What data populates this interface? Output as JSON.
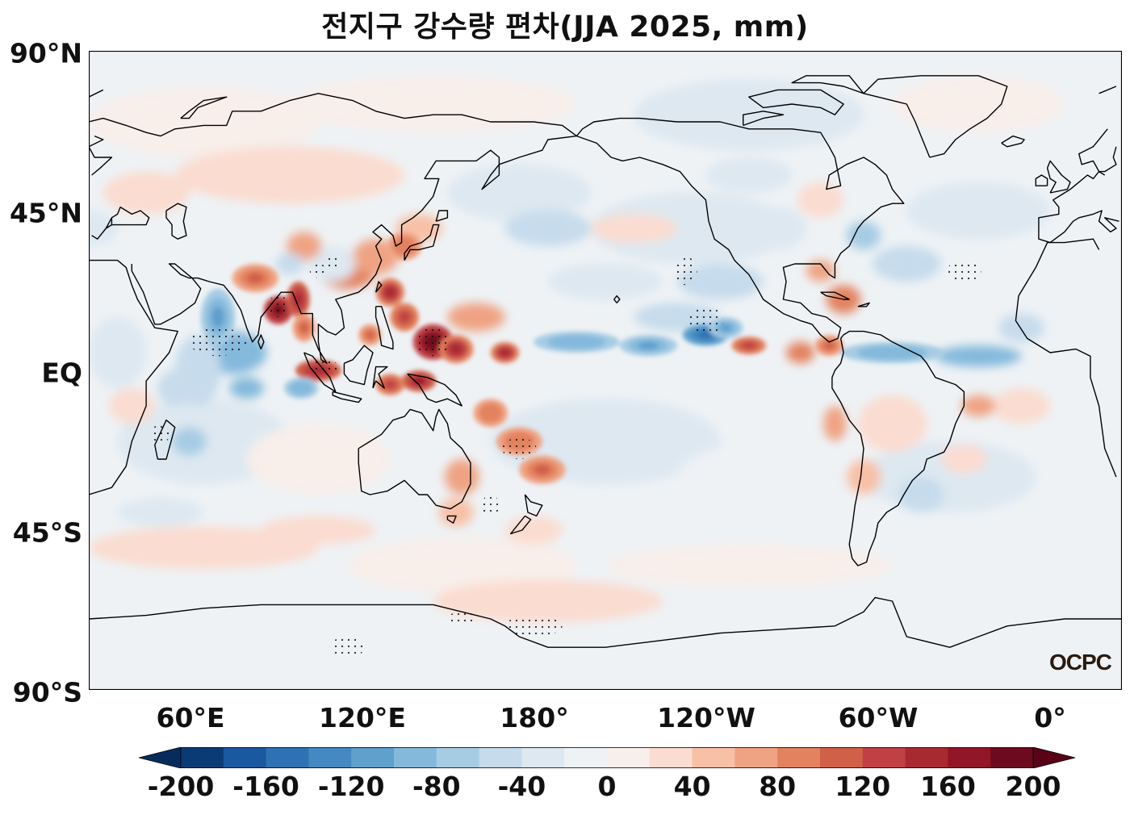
{
  "title": "전지구 강수량 편차(JJA 2025, mm)",
  "logo": "OCPC",
  "lat_labels": [
    "90°N",
    "45°N",
    "EQ",
    "45°S",
    "90°S"
  ],
  "lon_labels": [
    "60°E",
    "120°E",
    "180°",
    "120°W",
    "60°W",
    "0°"
  ],
  "colorbar": {
    "min": -200,
    "max": 200,
    "step": 20,
    "extend": "both",
    "tick_labels": [
      "-200",
      "-160",
      "-120",
      "-80",
      "-40",
      "0",
      "40",
      "80",
      "120",
      "160",
      "200"
    ],
    "colors": [
      "#0b3b75",
      "#1a58a0",
      "#2f72b3",
      "#4489c2",
      "#5fa0cd",
      "#84b9dc",
      "#a6cce4",
      "#c6dbec",
      "#dde8f1",
      "#eef2f5",
      "#f8eeea",
      "#fbdcd0",
      "#f8c0a6",
      "#efa383",
      "#e3825f",
      "#d06048",
      "#c04044",
      "#a82a30",
      "#921627",
      "#6d0a1f"
    ],
    "extend_min_color": "#062c5c",
    "extend_max_color": "#5a0216"
  },
  "map": {
    "projection": "PlateCarree",
    "central_longitude": 180,
    "lon_range": [
      20,
      380
    ],
    "lat_range": [
      -90,
      90
    ],
    "ocean_base_color": "#eef2f5",
    "highlights": [
      {
        "region": "Bay of Bengal / India",
        "sign": "wet"
      },
      {
        "region": "Philippine Sea / Maritime Continent",
        "sign": "wet"
      },
      {
        "region": "Arabian Sea / W Indian Ocean",
        "sign": "dry"
      },
      {
        "region": "Central-East Pacific ITCZ",
        "sign": "dry"
      },
      {
        "region": "Tropical Atlantic ITCZ",
        "sign": "dry"
      },
      {
        "region": "SPCZ",
        "sign": "wet"
      }
    ]
  }
}
